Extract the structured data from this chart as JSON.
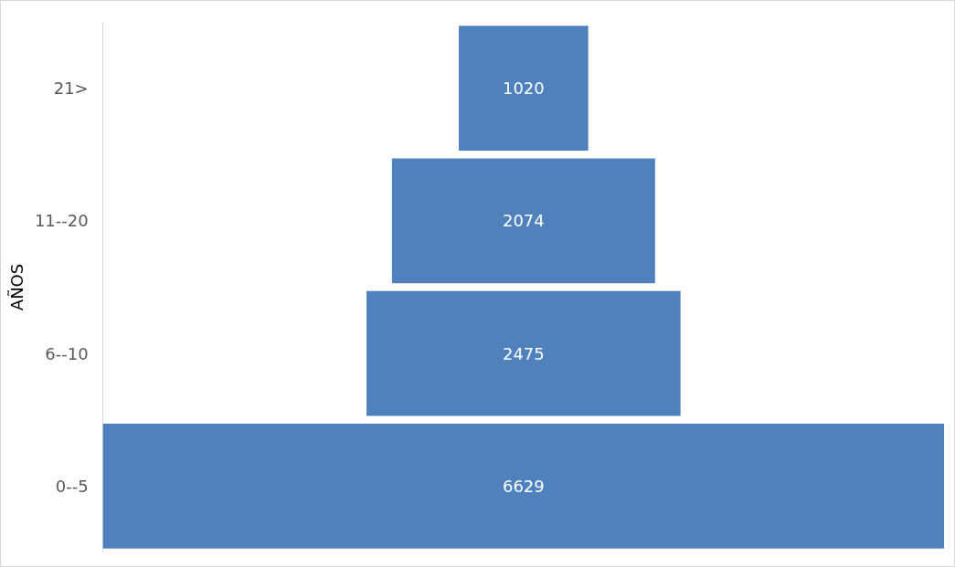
{
  "chart_data": {
    "type": "other",
    "ylabel": "AÑOS",
    "categories": [
      "21>",
      "11--20",
      "6--10",
      "0--5"
    ],
    "values": [
      1020,
      2074,
      2475,
      6629
    ],
    "color": "#4f81bd",
    "data_labels": true
  }
}
